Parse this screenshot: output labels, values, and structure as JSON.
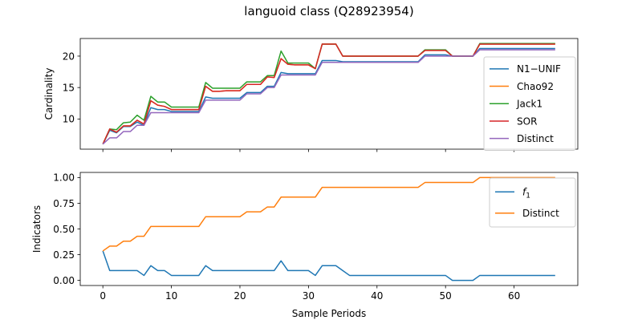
{
  "figure": {
    "title": "languoid class (Q28923954)"
  },
  "chart_data": [
    {
      "type": "line",
      "ylabel": "Cardinality",
      "xlabel": "",
      "xlim": [
        -3.3,
        69.3
      ],
      "ylim": [
        5.2,
        22.8
      ],
      "xticks": [
        0,
        10,
        20,
        30,
        40,
        50,
        60
      ],
      "yticks": [
        10,
        15,
        20
      ],
      "show_xticklabels": false,
      "grid": false,
      "legend_position": "center-right",
      "series": [
        {
          "name": "N1−UNIF",
          "color": "#1f77b4",
          "y": [
            6,
            8.2,
            7.8,
            8.8,
            8.8,
            9.5,
            9,
            11.8,
            11.5,
            11.5,
            11.2,
            11.2,
            11.2,
            11.2,
            11.2,
            13.5,
            13.3,
            13.3,
            13.3,
            13.3,
            13.3,
            14.2,
            14.2,
            14.2,
            15.2,
            15.2,
            17.4,
            17.2,
            17.2,
            17.2,
            17.2,
            17.2,
            19.3,
            19.3,
            19.3,
            19.1,
            19.1,
            19.1,
            19.1,
            19.1,
            19.1,
            19.1,
            19.1,
            19.1,
            19.1,
            19.1,
            19.1,
            20.2,
            20.2,
            20.2,
            20.2,
            20.0,
            20.0,
            20.0,
            20.0,
            21.2,
            21.2,
            21.2,
            21.2,
            21.2,
            21.2,
            21.2,
            21.2,
            21.2,
            21.2,
            21.2,
            21.2
          ]
        },
        {
          "name": "Chao92",
          "color": "#ff7f0e",
          "y": [
            6,
            8.4,
            7.9,
            8.9,
            8.9,
            9.8,
            9.2,
            12.9,
            12.2,
            12.0,
            11.5,
            11.5,
            11.5,
            11.5,
            11.5,
            15.2,
            14.4,
            14.4,
            14.5,
            14.5,
            14.5,
            15.5,
            15.5,
            15.5,
            16.7,
            16.6,
            19.6,
            18.7,
            18.6,
            18.6,
            18.6,
            18.0,
            21.9,
            21.9,
            21.9,
            20.0,
            20.0,
            20.0,
            20.0,
            20.0,
            20.0,
            20.0,
            20.0,
            20.0,
            20.0,
            20.0,
            20.0,
            20.9,
            20.9,
            20.9,
            20.9,
            20.0,
            20.0,
            20.0,
            20.0,
            21.9,
            21.9,
            21.9,
            21.9,
            21.9,
            21.9,
            21.9,
            21.9,
            21.9,
            21.9,
            21.9,
            21.9
          ]
        },
        {
          "name": "Jack1",
          "color": "#2ca02c",
          "y": [
            6,
            8.4,
            8.3,
            9.4,
            9.5,
            10.6,
            9.8,
            13.6,
            12.7,
            12.7,
            11.9,
            11.9,
            11.9,
            11.9,
            11.9,
            15.8,
            14.9,
            14.9,
            14.9,
            14.9,
            14.9,
            15.9,
            15.9,
            15.9,
            16.9,
            16.9,
            20.8,
            18.9,
            18.9,
            18.9,
            18.9,
            18.0,
            21.9,
            21.9,
            21.9,
            20.0,
            20.0,
            20.0,
            20.0,
            20.0,
            20.0,
            20.0,
            20.0,
            20.0,
            20.0,
            20.0,
            20.0,
            21.0,
            21.0,
            21.0,
            21.0,
            20.0,
            20.0,
            20.0,
            20.0,
            22.0,
            22.0,
            22.0,
            22.0,
            22.0,
            22.0,
            22.0,
            22.0,
            22.0,
            22.0,
            22.0,
            22.0
          ]
        },
        {
          "name": "SOR",
          "color": "#d62728",
          "y": [
            6,
            8.4,
            7.9,
            8.9,
            8.9,
            9.8,
            9.2,
            12.9,
            12.2,
            12.0,
            11.5,
            11.5,
            11.5,
            11.5,
            11.5,
            15.2,
            14.4,
            14.4,
            14.5,
            14.5,
            14.5,
            15.5,
            15.5,
            15.5,
            16.7,
            16.6,
            19.6,
            18.7,
            18.6,
            18.6,
            18.6,
            18.0,
            21.9,
            21.9,
            21.9,
            20.0,
            20.0,
            20.0,
            20.0,
            20.0,
            20.0,
            20.0,
            20.0,
            20.0,
            20.0,
            20.0,
            20.0,
            20.9,
            20.9,
            20.9,
            20.9,
            20.0,
            20.0,
            20.0,
            20.0,
            21.9,
            21.9,
            21.9,
            21.9,
            21.9,
            21.9,
            21.9,
            21.9,
            21.9,
            21.9,
            21.9,
            21.9
          ]
        },
        {
          "name": "Distinct",
          "color": "#9467bd",
          "y": [
            6,
            7,
            7,
            8,
            8,
            9,
            9,
            11,
            11,
            11,
            11,
            11,
            11,
            11,
            11,
            13,
            13,
            13,
            13,
            13,
            13,
            14,
            14,
            14,
            15,
            15,
            17,
            17,
            17,
            17,
            17,
            17,
            19,
            19,
            19,
            19,
            19,
            19,
            19,
            19,
            19,
            19,
            19,
            19,
            19,
            19,
            19,
            20,
            20,
            20,
            20,
            20,
            20,
            20,
            20,
            21,
            21,
            21,
            21,
            21,
            21,
            21,
            21,
            21,
            21,
            21,
            21
          ]
        }
      ]
    },
    {
      "type": "line",
      "ylabel": "Indicators",
      "xlabel": "Sample Periods",
      "xlim": [
        -3.3,
        69.3
      ],
      "ylim": [
        -0.05,
        1.05
      ],
      "xticks": [
        0,
        10,
        20,
        30,
        40,
        50,
        60
      ],
      "yticks": [
        0.0,
        0.25,
        0.5,
        0.75,
        1.0
      ],
      "ytick_labels": [
        "0.00",
        "0.25",
        "0.50",
        "0.75",
        "1.00"
      ],
      "show_xticklabels": true,
      "grid": false,
      "legend_position": "top-right",
      "series": [
        {
          "name": "f1",
          "color": "#1f77b4",
          "y": [
            0.286,
            0.095,
            0.095,
            0.095,
            0.095,
            0.095,
            0.048,
            0.143,
            0.095,
            0.095,
            0.048,
            0.048,
            0.048,
            0.048,
            0.048,
            0.143,
            0.095,
            0.095,
            0.095,
            0.095,
            0.095,
            0.095,
            0.095,
            0.095,
            0.095,
            0.095,
            0.19,
            0.095,
            0.095,
            0.095,
            0.095,
            0.048,
            0.143,
            0.143,
            0.143,
            0.095,
            0.048,
            0.048,
            0.048,
            0.048,
            0.048,
            0.048,
            0.048,
            0.048,
            0.048,
            0.048,
            0.048,
            0.048,
            0.048,
            0.048,
            0.048,
            0.0,
            0.0,
            0.0,
            0.0,
            0.048,
            0.048,
            0.048,
            0.048,
            0.048,
            0.048,
            0.048,
            0.048,
            0.048,
            0.048,
            0.048,
            0.048
          ]
        },
        {
          "name": "Distinct",
          "color": "#ff7f0e",
          "y": [
            0.286,
            0.333,
            0.333,
            0.381,
            0.381,
            0.429,
            0.429,
            0.524,
            0.524,
            0.524,
            0.524,
            0.524,
            0.524,
            0.524,
            0.524,
            0.619,
            0.619,
            0.619,
            0.619,
            0.619,
            0.619,
            0.667,
            0.667,
            0.667,
            0.714,
            0.714,
            0.81,
            0.81,
            0.81,
            0.81,
            0.81,
            0.81,
            0.905,
            0.905,
            0.905,
            0.905,
            0.905,
            0.905,
            0.905,
            0.905,
            0.905,
            0.905,
            0.905,
            0.905,
            0.905,
            0.905,
            0.905,
            0.952,
            0.952,
            0.952,
            0.952,
            0.952,
            0.952,
            0.952,
            0.952,
            1.0,
            1.0,
            1.0,
            1.0,
            1.0,
            1.0,
            1.0,
            1.0,
            1.0,
            1.0,
            1.0,
            1.0
          ]
        }
      ]
    }
  ]
}
